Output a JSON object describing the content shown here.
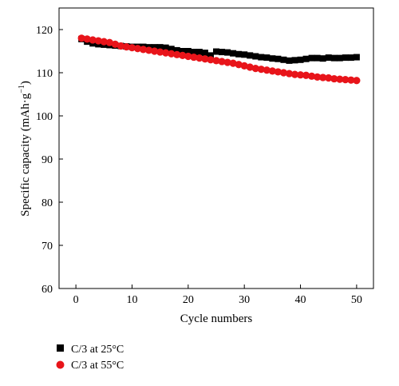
{
  "chart_data": {
    "type": "scatter",
    "title": "",
    "xlabel": "Cycle numbers",
    "ylabel": "Specific capacity (mAh·g",
    "ylabel_sup": "−1",
    "ylabel_close": ")",
    "xlim": [
      -3,
      53
    ],
    "ylim": [
      60,
      125
    ],
    "xticks": [
      0,
      10,
      20,
      30,
      40,
      50
    ],
    "yticks": [
      60,
      70,
      80,
      90,
      100,
      110,
      120
    ],
    "grid": false,
    "legend_position": "bottom-left",
    "series": [
      {
        "name": "C/3 at 25°C",
        "marker": "square",
        "color": "#000000",
        "x": [
          1,
          2,
          3,
          4,
          5,
          6,
          7,
          8,
          9,
          10,
          11,
          12,
          13,
          14,
          15,
          16,
          17,
          18,
          19,
          20,
          21,
          22,
          23,
          24,
          25,
          26,
          27,
          28,
          29,
          30,
          31,
          32,
          33,
          34,
          35,
          36,
          37,
          38,
          39,
          40,
          41,
          42,
          43,
          44,
          45,
          46,
          47,
          48,
          49,
          50
        ],
        "y": [
          117.8,
          117.2,
          116.8,
          116.6,
          116.5,
          116.4,
          116.3,
          116.2,
          116.1,
          116.0,
          116.0,
          116.0,
          115.9,
          115.9,
          115.9,
          115.8,
          115.5,
          115.2,
          115.0,
          115.0,
          114.8,
          114.8,
          114.6,
          114.0,
          114.9,
          114.8,
          114.7,
          114.5,
          114.3,
          114.2,
          114.0,
          113.8,
          113.6,
          113.5,
          113.3,
          113.2,
          113.0,
          112.8,
          112.9,
          113.0,
          113.2,
          113.4,
          113.4,
          113.3,
          113.5,
          113.4,
          113.4,
          113.5,
          113.5,
          113.6
        ]
      },
      {
        "name": "C/3 at 55°C",
        "marker": "circle",
        "color": "#e8141a",
        "x": [
          1,
          2,
          3,
          4,
          5,
          6,
          7,
          8,
          9,
          10,
          11,
          12,
          13,
          14,
          15,
          16,
          17,
          18,
          19,
          20,
          21,
          22,
          23,
          24,
          25,
          26,
          27,
          28,
          29,
          30,
          31,
          32,
          33,
          34,
          35,
          36,
          37,
          38,
          39,
          40,
          41,
          42,
          43,
          44,
          45,
          46,
          47,
          48,
          49,
          50
        ],
        "y": [
          118.0,
          117.8,
          117.6,
          117.4,
          117.2,
          117.0,
          116.6,
          116.2,
          116.0,
          115.8,
          115.6,
          115.4,
          115.2,
          115.0,
          114.8,
          114.6,
          114.4,
          114.2,
          114.0,
          113.8,
          113.6,
          113.4,
          113.2,
          113.0,
          112.8,
          112.6,
          112.4,
          112.2,
          111.9,
          111.6,
          111.3,
          111.0,
          110.8,
          110.6,
          110.4,
          110.2,
          110.0,
          109.8,
          109.6,
          109.5,
          109.4,
          109.2,
          109.0,
          108.9,
          108.8,
          108.6,
          108.5,
          108.4,
          108.3,
          108.2
        ]
      }
    ]
  }
}
